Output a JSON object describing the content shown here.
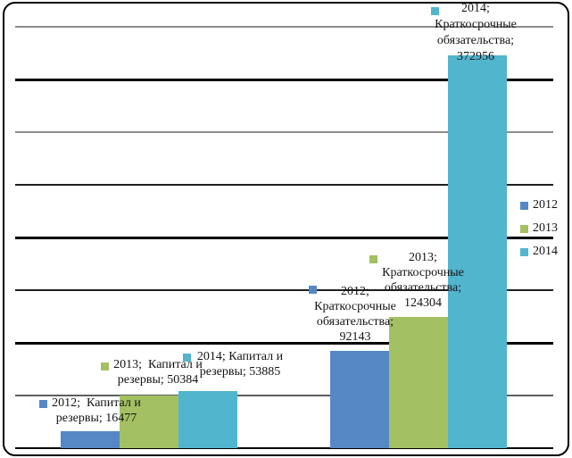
{
  "chart_data": {
    "type": "bar",
    "title": "",
    "xlabel": "",
    "ylabel": "",
    "categories": [
      "Капитал и резервы",
      "Краткосрочные обязательства"
    ],
    "series": [
      {
        "name": "2012",
        "color": "#5588C5",
        "values": [
          16477,
          92143
        ]
      },
      {
        "name": "2013",
        "color": "#A3C163",
        "values": [
          50384,
          124304
        ]
      },
      {
        "name": "2014",
        "color": "#52B5CE",
        "values": [
          53885,
          372956
        ]
      }
    ],
    "ylim": [
      0,
      400000
    ],
    "grid": true,
    "gridline_step": 50000,
    "legend_position": "right",
    "data_labels": [
      {
        "series": "2012",
        "category": "Капитал и резервы",
        "lines": [
          "2012;  Капитал и",
          "резервы; 16477"
        ]
      },
      {
        "series": "2013",
        "category": "Капитал и резервы",
        "lines": [
          "2013;  Капитал и",
          "резервы; 50384"
        ]
      },
      {
        "series": "2014",
        "category": "Капитал и резервы",
        "lines": [
          "2014; Капитал и",
          "резервы; 53885"
        ]
      },
      {
        "series": "2012",
        "category": "Краткосрочные обязательства",
        "lines": [
          "2012;",
          "Краткосрочные",
          "обязательства;",
          "92143"
        ]
      },
      {
        "series": "2013",
        "category": "Краткосрочные обязательства",
        "lines": [
          "2013;",
          "Краткосрочные",
          "обязательства;",
          "124304"
        ]
      },
      {
        "series": "2014",
        "category": "Краткосрочные обязательства",
        "lines": [
          "2014;",
          "Краткосрочные",
          "обязательства;",
          "372956"
        ]
      }
    ]
  },
  "legend": {
    "items": [
      {
        "label": "2012",
        "color": "#5588C5"
      },
      {
        "label": "2013",
        "color": "#A3C163"
      },
      {
        "label": "2014",
        "color": "#52B5CE"
      }
    ]
  },
  "frame": {
    "border_color": "#000000",
    "background": "#ffffff"
  }
}
